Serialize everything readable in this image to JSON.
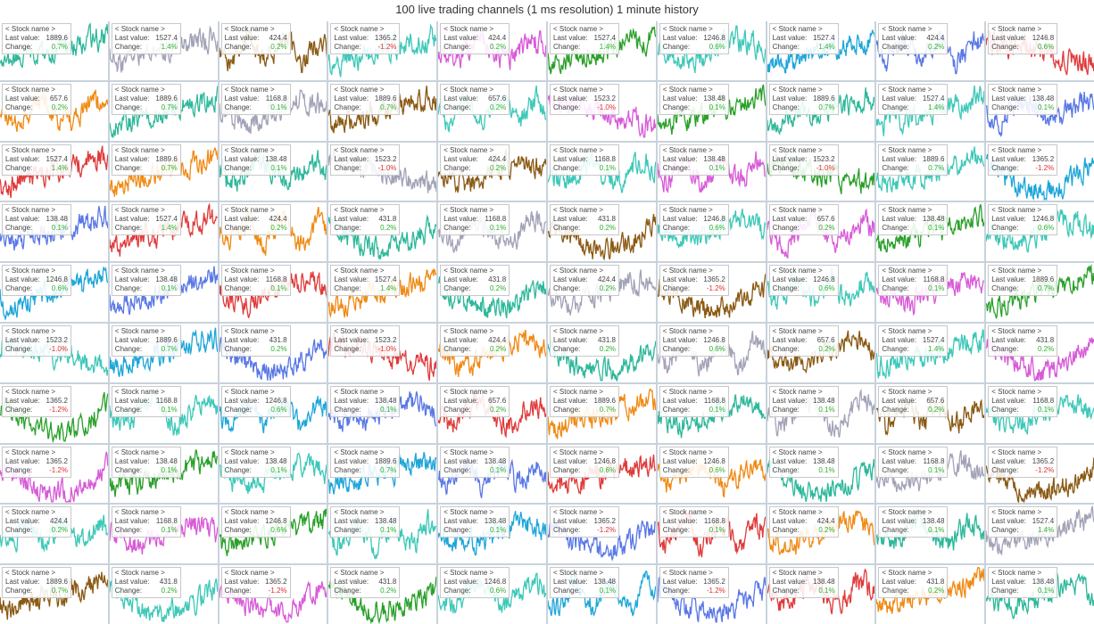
{
  "window": {
    "title": "100 live trading channels (1 ms resolution) 1 minute history"
  },
  "labels": {
    "name": "< Stock name >",
    "last_value": "Last value:",
    "change": "Change:"
  },
  "palette": {
    "teal": "#2eb89a",
    "gray": "#a3a3b8",
    "brown": "#8a5a14",
    "magenta": "#d85ad8",
    "green": "#2aa02a",
    "red": "#e03a3a",
    "orange": "#f08a14",
    "blue": "#5a78e6",
    "cyan": "#1ea6d8",
    "turq": "#3ec8b8"
  },
  "channels": [
    {
      "value": "1889.6",
      "change": "0.7%",
      "color": "teal",
      "trend": "up"
    },
    {
      "value": "1527.4",
      "change": "1.4%",
      "color": "gray",
      "trend": "up"
    },
    {
      "value": "424.4",
      "change": "0.2%",
      "color": "brown",
      "trend": "flat"
    },
    {
      "value": "1365.2",
      "change": "-1.2%",
      "color": "turq",
      "trend": "up"
    },
    {
      "value": "424.4",
      "change": "0.2%",
      "color": "magenta",
      "trend": "flat"
    },
    {
      "value": "1527.4",
      "change": "1.4%",
      "color": "green",
      "trend": "up"
    },
    {
      "value": "1246.8",
      "change": "0.6%",
      "color": "turq",
      "trend": "flat"
    },
    {
      "value": "1527.4",
      "change": "1.4%",
      "color": "cyan",
      "trend": "up"
    },
    {
      "value": "424.4",
      "change": "0.2%",
      "color": "blue",
      "trend": "flat"
    },
    {
      "value": "1246.8",
      "change": "0.6%",
      "color": "red",
      "trend": "down"
    },
    {
      "value": "657.6",
      "change": "0.2%",
      "color": "orange",
      "trend": "flat"
    },
    {
      "value": "1889.6",
      "change": "0.7%",
      "color": "teal",
      "trend": "up"
    },
    {
      "value": "1168.8",
      "change": "0.1%",
      "color": "gray",
      "trend": "flat"
    },
    {
      "value": "1889.6",
      "change": "0.7%",
      "color": "brown",
      "trend": "up"
    },
    {
      "value": "657.6",
      "change": "0.2%",
      "color": "turq",
      "trend": "flat"
    },
    {
      "value": "1523.2",
      "change": "-1.0%",
      "color": "magenta",
      "trend": "down"
    },
    {
      "value": "138.48",
      "change": "0.1%",
      "color": "green",
      "trend": "up"
    },
    {
      "value": "1889.6",
      "change": "0.7%",
      "color": "teal",
      "trend": "up"
    },
    {
      "value": "1527.4",
      "change": "1.4%",
      "color": "turq",
      "trend": "up"
    },
    {
      "value": "138.48",
      "change": "0.1%",
      "color": "blue",
      "trend": "flat"
    },
    {
      "value": "1527.4",
      "change": "1.4%",
      "color": "red",
      "trend": "up"
    },
    {
      "value": "1889.6",
      "change": "0.7%",
      "color": "orange",
      "trend": "up"
    },
    {
      "value": "138.48",
      "change": "0.1%",
      "color": "teal",
      "trend": "flat"
    },
    {
      "value": "1523.2",
      "change": "-1.0%",
      "color": "gray",
      "trend": "down"
    },
    {
      "value": "424.4",
      "change": "0.2%",
      "color": "brown",
      "trend": "flat"
    },
    {
      "value": "1168.8",
      "change": "0.1%",
      "color": "turq",
      "trend": "flat"
    },
    {
      "value": "138.48",
      "change": "0.1%",
      "color": "magenta",
      "trend": "flat"
    },
    {
      "value": "1523.2",
      "change": "-1.0%",
      "color": "green",
      "trend": "down"
    },
    {
      "value": "1889.6",
      "change": "0.7%",
      "color": "turq",
      "trend": "up"
    },
    {
      "value": "1365.2",
      "change": "-1.2%",
      "color": "cyan",
      "trend": "dip"
    },
    {
      "value": "138.48",
      "change": "0.1%",
      "color": "blue",
      "trend": "up"
    },
    {
      "value": "1527.4",
      "change": "1.4%",
      "color": "red",
      "trend": "up"
    },
    {
      "value": "424.4",
      "change": "0.2%",
      "color": "orange",
      "trend": "flat"
    },
    {
      "value": "431.8",
      "change": "0.2%",
      "color": "teal",
      "trend": "dip"
    },
    {
      "value": "1168.8",
      "change": "0.1%",
      "color": "gray",
      "trend": "flat"
    },
    {
      "value": "431.8",
      "change": "0.2%",
      "color": "brown",
      "trend": "dip"
    },
    {
      "value": "1246.8",
      "change": "0.6%",
      "color": "turq",
      "trend": "flat"
    },
    {
      "value": "657.6",
      "change": "0.2%",
      "color": "magenta",
      "trend": "flat"
    },
    {
      "value": "138.48",
      "change": "0.1%",
      "color": "green",
      "trend": "up"
    },
    {
      "value": "1246.8",
      "change": "0.6%",
      "color": "turq",
      "trend": "flat"
    },
    {
      "value": "1246.8",
      "change": "0.6%",
      "color": "cyan",
      "trend": "up"
    },
    {
      "value": "138.48",
      "change": "0.1%",
      "color": "blue",
      "trend": "up"
    },
    {
      "value": "1168.8",
      "change": "0.1%",
      "color": "red",
      "trend": "flat"
    },
    {
      "value": "1527.4",
      "change": "1.4%",
      "color": "orange",
      "trend": "up"
    },
    {
      "value": "431.8",
      "change": "0.2%",
      "color": "teal",
      "trend": "dip"
    },
    {
      "value": "424.4",
      "change": "0.2%",
      "color": "gray",
      "trend": "flat"
    },
    {
      "value": "1365.2",
      "change": "-1.2%",
      "color": "brown",
      "trend": "dip"
    },
    {
      "value": "1246.8",
      "change": "0.6%",
      "color": "turq",
      "trend": "flat"
    },
    {
      "value": "1168.8",
      "change": "0.1%",
      "color": "magenta",
      "trend": "flat"
    },
    {
      "value": "1889.6",
      "change": "0.7%",
      "color": "green",
      "trend": "up"
    },
    {
      "value": "1523.2",
      "change": "-1.0%",
      "color": "turq",
      "trend": "down"
    },
    {
      "value": "1889.6",
      "change": "0.7%",
      "color": "cyan",
      "trend": "up"
    },
    {
      "value": "431.8",
      "change": "0.2%",
      "color": "blue",
      "trend": "dip"
    },
    {
      "value": "1523.2",
      "change": "-1.0%",
      "color": "red",
      "trend": "down"
    },
    {
      "value": "424.4",
      "change": "0.2%",
      "color": "orange",
      "trend": "flat"
    },
    {
      "value": "431.8",
      "change": "0.2%",
      "color": "teal",
      "trend": "dip"
    },
    {
      "value": "1246.8",
      "change": "0.6%",
      "color": "gray",
      "trend": "flat"
    },
    {
      "value": "657.6",
      "change": "0.2%",
      "color": "brown",
      "trend": "flat"
    },
    {
      "value": "1527.4",
      "change": "1.4%",
      "color": "turq",
      "trend": "up"
    },
    {
      "value": "431.8",
      "change": "0.2%",
      "color": "magenta",
      "trend": "dip"
    },
    {
      "value": "1365.2",
      "change": "-1.2%",
      "color": "green",
      "trend": "dip"
    },
    {
      "value": "1168.8",
      "change": "0.1%",
      "color": "turq",
      "trend": "flat"
    },
    {
      "value": "1246.8",
      "change": "0.6%",
      "color": "cyan",
      "trend": "flat"
    },
    {
      "value": "138.48",
      "change": "0.1%",
      "color": "blue",
      "trend": "flat"
    },
    {
      "value": "657.6",
      "change": "0.2%",
      "color": "red",
      "trend": "flat"
    },
    {
      "value": "1889.6",
      "change": "0.7%",
      "color": "orange",
      "trend": "up"
    },
    {
      "value": "1168.8",
      "change": "0.1%",
      "color": "teal",
      "trend": "flat"
    },
    {
      "value": "138.48",
      "change": "0.1%",
      "color": "gray",
      "trend": "flat"
    },
    {
      "value": "657.6",
      "change": "0.2%",
      "color": "brown",
      "trend": "flat"
    },
    {
      "value": "1168.8",
      "change": "0.1%",
      "color": "turq",
      "trend": "flat"
    },
    {
      "value": "1365.2",
      "change": "-1.2%",
      "color": "magenta",
      "trend": "dip"
    },
    {
      "value": "138.48",
      "change": "0.1%",
      "color": "green",
      "trend": "up"
    },
    {
      "value": "138.48",
      "change": "0.1%",
      "color": "turq",
      "trend": "flat"
    },
    {
      "value": "1889.6",
      "change": "0.7%",
      "color": "cyan",
      "trend": "up"
    },
    {
      "value": "138.48",
      "change": "0.1%",
      "color": "blue",
      "trend": "flat"
    },
    {
      "value": "1246.8",
      "change": "0.6%",
      "color": "red",
      "trend": "up"
    },
    {
      "value": "1246.8",
      "change": "0.6%",
      "color": "orange",
      "trend": "flat"
    },
    {
      "value": "138.48",
      "change": "0.1%",
      "color": "teal",
      "trend": "dip"
    },
    {
      "value": "1168.8",
      "change": "0.1%",
      "color": "gray",
      "trend": "flat"
    },
    {
      "value": "1365.2",
      "change": "-1.2%",
      "color": "brown",
      "trend": "dip"
    },
    {
      "value": "424.4",
      "change": "0.2%",
      "color": "turq",
      "trend": "flat"
    },
    {
      "value": "1168.8",
      "change": "0.1%",
      "color": "magenta",
      "trend": "flat"
    },
    {
      "value": "1246.8",
      "change": "0.6%",
      "color": "green",
      "trend": "up"
    },
    {
      "value": "138.48",
      "change": "0.1%",
      "color": "turq",
      "trend": "flat"
    },
    {
      "value": "138.48",
      "change": "0.1%",
      "color": "cyan",
      "trend": "flat"
    },
    {
      "value": "1365.2",
      "change": "-1.2%",
      "color": "blue",
      "trend": "dip"
    },
    {
      "value": "1168.8",
      "change": "0.1%",
      "color": "red",
      "trend": "flat"
    },
    {
      "value": "424.4",
      "change": "0.2%",
      "color": "orange",
      "trend": "flat"
    },
    {
      "value": "138.48",
      "change": "0.1%",
      "color": "teal",
      "trend": "flat"
    },
    {
      "value": "1527.4",
      "change": "1.4%",
      "color": "gray",
      "trend": "up"
    },
    {
      "value": "1889.6",
      "change": "0.7%",
      "color": "brown",
      "trend": "up"
    },
    {
      "value": "431.8",
      "change": "0.2%",
      "color": "turq",
      "trend": "dip"
    },
    {
      "value": "1365.2",
      "change": "-1.2%",
      "color": "magenta",
      "trend": "dip"
    },
    {
      "value": "431.8",
      "change": "0.2%",
      "color": "green",
      "trend": "dip"
    },
    {
      "value": "1246.8",
      "change": "0.6%",
      "color": "turq",
      "trend": "flat"
    },
    {
      "value": "138.48",
      "change": "0.1%",
      "color": "cyan",
      "trend": "flat"
    },
    {
      "value": "1365.2",
      "change": "-1.2%",
      "color": "blue",
      "trend": "dip"
    },
    {
      "value": "138.48",
      "change": "0.1%",
      "color": "red",
      "trend": "flat"
    },
    {
      "value": "431.8",
      "change": "0.2%",
      "color": "orange",
      "trend": "up"
    },
    {
      "value": "138.48",
      "change": "0.1%",
      "color": "teal",
      "trend": "flat"
    }
  ]
}
